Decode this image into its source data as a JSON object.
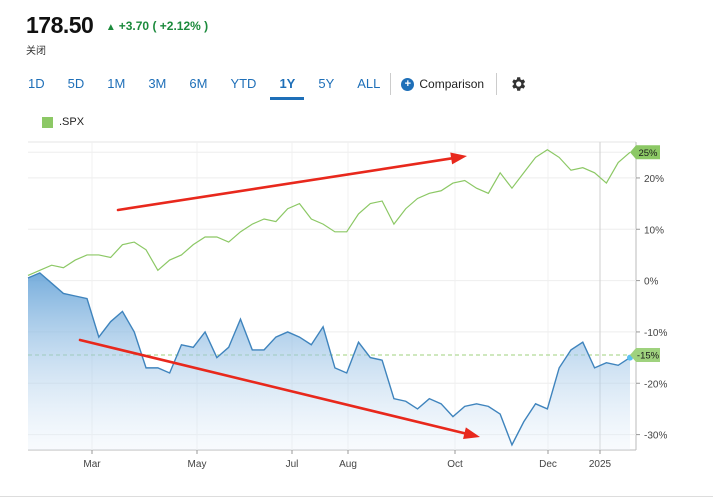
{
  "quote": {
    "price": "178.50",
    "change": "+3.70",
    "change_pct": "( +2.12% )",
    "status": "关闭"
  },
  "ranges": [
    {
      "label": "1D",
      "active": false
    },
    {
      "label": "5D",
      "active": false
    },
    {
      "label": "1M",
      "active": false
    },
    {
      "label": "3M",
      "active": false
    },
    {
      "label": "6M",
      "active": false
    },
    {
      "label": "YTD",
      "active": false
    },
    {
      "label": "1Y",
      "active": true
    },
    {
      "label": "5Y",
      "active": false
    },
    {
      "label": "ALL",
      "active": false
    }
  ],
  "toolbar": {
    "comparison_label": "Comparison",
    "settings_icon": "gear-icon"
  },
  "legend": {
    "series_label": ".SPX",
    "color": "#8cc865"
  },
  "colors": {
    "main_line": "#3f84bd",
    "compare_line": "#8cc865",
    "arrow": "#e8281c",
    "positive": "#1b8a3c"
  },
  "chart_data": {
    "type": "line",
    "title": "",
    "xlabel": "",
    "ylabel": "",
    "x_tick_labels": [
      "Mar",
      "May",
      "Jul",
      "Aug",
      "Oct",
      "Dec",
      "2025"
    ],
    "y_ticks": [
      25,
      20,
      10,
      0,
      -10,
      -20,
      -30
    ],
    "y_tick_labels": [
      "25%",
      "20%",
      "10%",
      "0%",
      "-10%",
      "-20%",
      "-30%"
    ],
    "ylim": [
      -33,
      27
    ],
    "grid": true,
    "last_value_labels": {
      "comparison": "25%",
      "main": "-15%"
    },
    "baseline_value": -14.5,
    "series": [
      {
        "name": ".SPX",
        "role": "comparison",
        "values": [
          1,
          2,
          3,
          2.5,
          4,
          5,
          5,
          4.5,
          7,
          7.5,
          6,
          2,
          4,
          5,
          7,
          8.5,
          8.5,
          7.5,
          9.5,
          11,
          12,
          11.5,
          14,
          15,
          12,
          11,
          9.5,
          9.5,
          13,
          15,
          15.5,
          11,
          14,
          16,
          17,
          17.5,
          19,
          19.5,
          18,
          17,
          21,
          18,
          21,
          24,
          25.5,
          24,
          21.5,
          22,
          21,
          19,
          23,
          25
        ]
      },
      {
        "name": "",
        "role": "main",
        "values": [
          0.5,
          1.5,
          -0.5,
          -2.5,
          -3,
          -3.5,
          -11,
          -8,
          -6,
          -10,
          -17,
          -17,
          -18,
          -12.5,
          -13,
          -10,
          -15,
          -13,
          -7.5,
          -13.5,
          -13.5,
          -11,
          -10,
          -11,
          -12.5,
          -9,
          -17,
          -18,
          -12,
          -15,
          -15.5,
          -23,
          -23.5,
          -25,
          -23,
          -24,
          -26.5,
          -24.5,
          -24,
          -24.5,
          -26,
          -32,
          -27.5,
          -24,
          -25,
          -17,
          -13.5,
          -12,
          -17,
          -16,
          -16.5,
          -15
        ]
      }
    ]
  }
}
